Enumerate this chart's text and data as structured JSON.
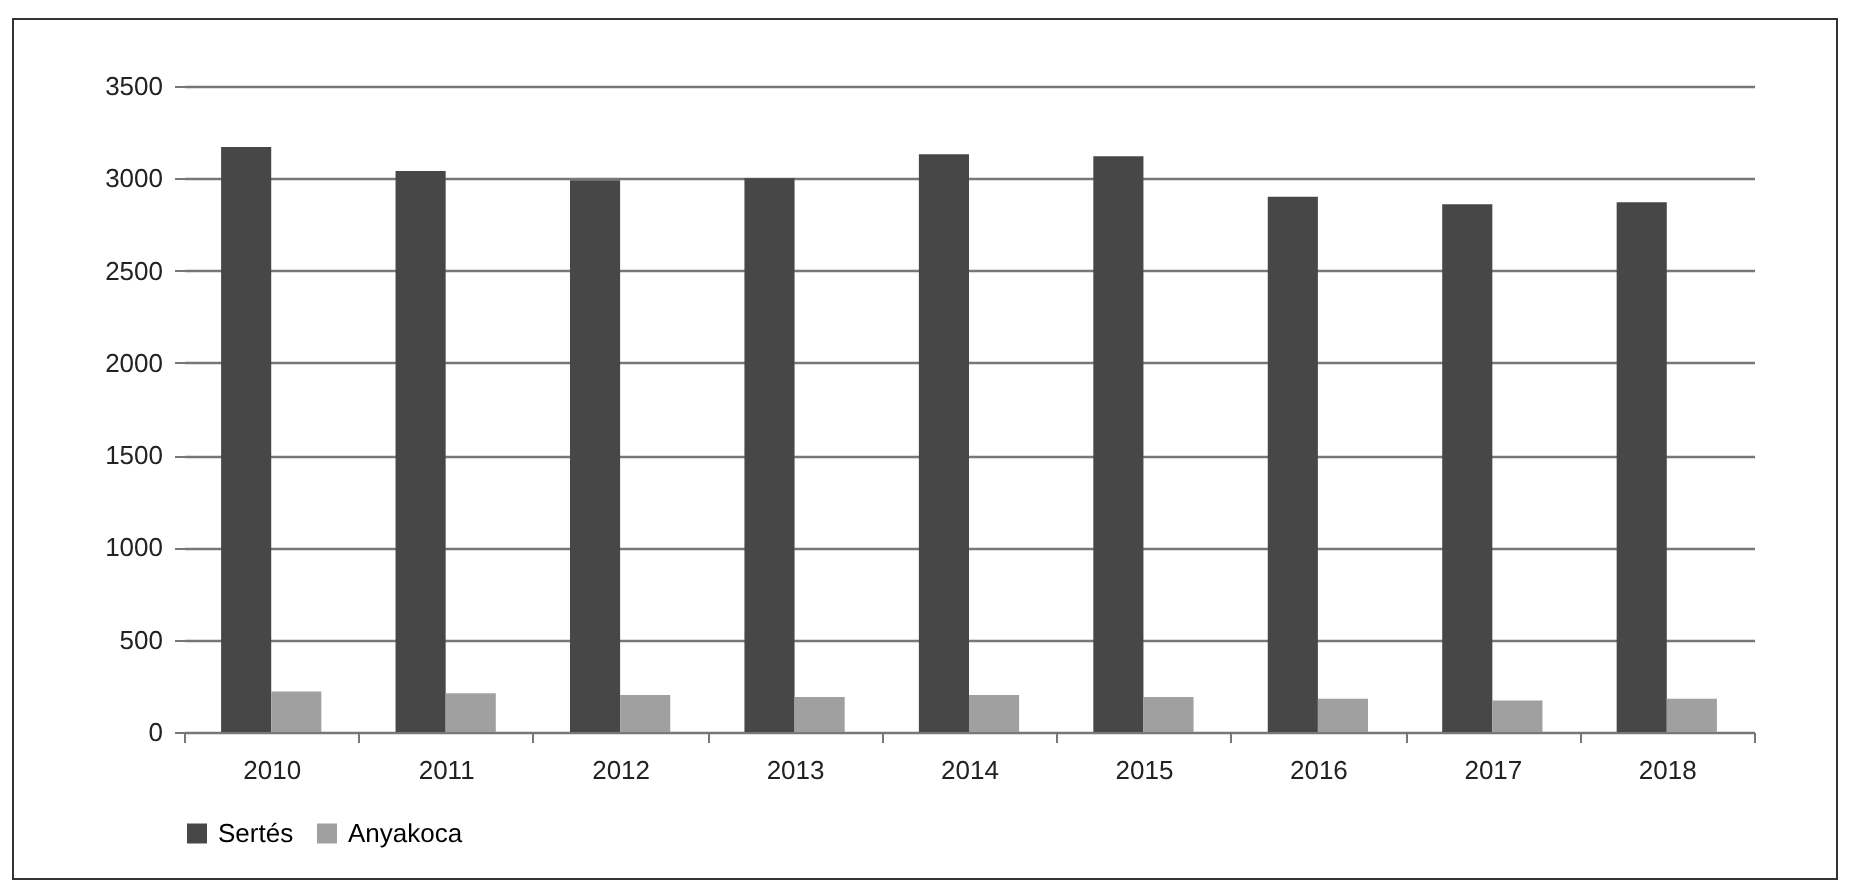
{
  "chart_data": {
    "type": "bar",
    "categories": [
      "2010",
      "2011",
      "2012",
      "2013",
      "2014",
      "2015",
      "2016",
      "2017",
      "2018"
    ],
    "series": [
      {
        "name": "Sertés",
        "color": "#474747",
        "values": [
          3170,
          3040,
          2990,
          3000,
          3130,
          3120,
          2900,
          2860,
          2870
        ]
      },
      {
        "name": "Anyakoca",
        "color": "#a0a0a0",
        "values": [
          220,
          210,
          200,
          190,
          200,
          190,
          180,
          170,
          180
        ]
      }
    ],
    "ylim": [
      0,
      3500
    ],
    "yticks": [
      0,
      500,
      1000,
      1500,
      2000,
      2500,
      3000,
      3500
    ],
    "grid": "y",
    "legend": "bottom"
  }
}
